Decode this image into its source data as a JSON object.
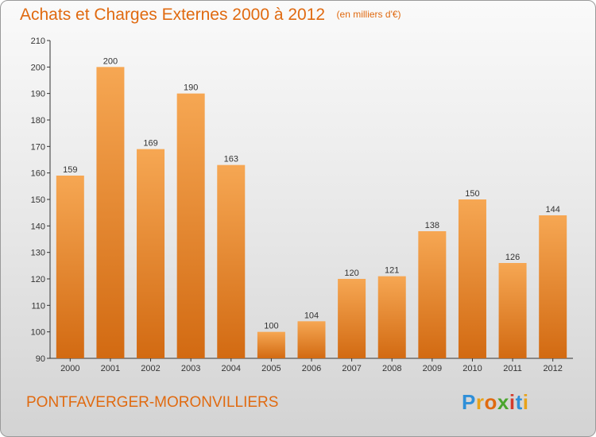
{
  "chart_data": {
    "type": "bar",
    "title": "Achats et Charges Externes 2000 à 2012",
    "subtitle": "(en milliers d'€)",
    "categories": [
      "2000",
      "2001",
      "2002",
      "2003",
      "2004",
      "2005",
      "2006",
      "2007",
      "2008",
      "2009",
      "2010",
      "2011",
      "2012"
    ],
    "values": [
      159,
      200,
      169,
      190,
      163,
      100,
      104,
      120,
      121,
      138,
      150,
      126,
      144
    ],
    "ylim": [
      90,
      210
    ],
    "yticks": [
      90,
      100,
      110,
      120,
      130,
      140,
      150,
      160,
      170,
      180,
      190,
      200,
      210
    ],
    "grid": false,
    "colors": {
      "bar_light": "#f6a753",
      "bar_dark": "#d26a12",
      "title": "#e06a10",
      "axis": "#333333"
    }
  },
  "footer": {
    "commune": "PONTFAVERGER-MORONVILLIERS",
    "logo": {
      "text": "Proxiti",
      "letters": [
        {
          "ch": "P",
          "color": "#2f8fd8"
        },
        {
          "ch": "r",
          "color": "#e8a21a"
        },
        {
          "ch": "o",
          "color": "#e06a10"
        },
        {
          "ch": "x",
          "color": "#4aa52e"
        },
        {
          "ch": "i",
          "color": "#d33b2c"
        },
        {
          "ch": "t",
          "color": "#2f8fd8"
        },
        {
          "ch": "i",
          "color": "#e8a21a"
        }
      ]
    }
  }
}
